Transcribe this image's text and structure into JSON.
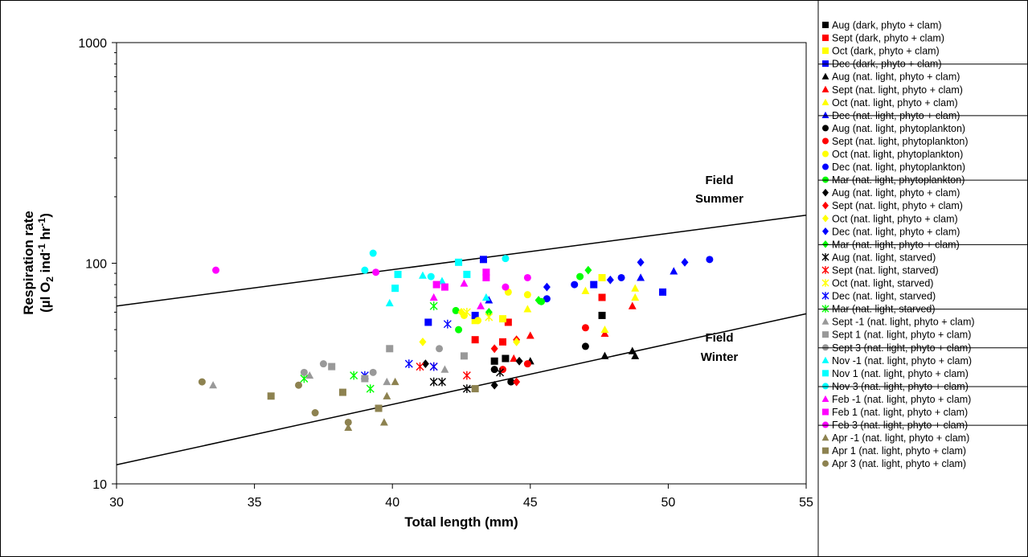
{
  "chart_data": {
    "type": "scatter",
    "title": "",
    "xlabel": "Total length (mm)",
    "ylabel_line1": "Respiration rate",
    "ylabel_line2_prefix": "(µl O",
    "ylabel_line2_sub": "2",
    "ylabel_line2_mid": " ind",
    "ylabel_line2_sup1": "-1",
    "ylabel_line2_mid2": " hr",
    "ylabel_line2_sup2": "-1",
    "ylabel_line2_suffix": ")",
    "xlim": [
      30,
      55
    ],
    "ylim": [
      10,
      1000
    ],
    "yscale": "log",
    "xticks": [
      30,
      35,
      40,
      45,
      50,
      55
    ],
    "yticks": [
      10,
      100,
      1000
    ],
    "grid": false,
    "legend_position": "right",
    "reference_lines": [
      {
        "name": "Field Summer",
        "label_line1": "Field",
        "label_line2": "Summer",
        "points": [
          [
            30,
            64
          ],
          [
            55,
            165
          ]
        ]
      },
      {
        "name": "Field Winter",
        "label_line1": "Field",
        "label_line2": "Winter",
        "points": [
          [
            30,
            12.2
          ],
          [
            55,
            59
          ]
        ]
      }
    ],
    "colors": {
      "black": "#000000",
      "red": "#ff0000",
      "yellow": "#ffff00",
      "blue": "#0000ff",
      "green": "#00ff00",
      "gray": "#999999",
      "cyan": "#00ffff",
      "magenta": "#ff00ff",
      "olive": "#8d8250"
    },
    "legend_groups": [
      {
        "items": [
          {
            "name": "Aug (dark, phyto + clam)",
            "marker": "square",
            "color": "#000000"
          },
          {
            "name": "Sept (dark, phyto + clam)",
            "marker": "square",
            "color": "#ff0000"
          },
          {
            "name": "Oct (dark, phyto + clam)",
            "marker": "square",
            "color": "#ffff00"
          },
          {
            "name": "Dec (dark, phyto + clam)",
            "marker": "square",
            "color": "#0000ff"
          }
        ]
      },
      {
        "items": [
          {
            "name": "Aug (nat. light, phyto + clam)",
            "marker": "triangle",
            "color": "#000000"
          },
          {
            "name": "Sept (nat. light, phyto + clam)",
            "marker": "triangle",
            "color": "#ff0000"
          },
          {
            "name": "Oct (nat. light, phyto + clam)",
            "marker": "triangle",
            "color": "#ffff00"
          },
          {
            "name": "Dec (nat. light, phyto + clam)",
            "marker": "triangle",
            "color": "#0000ff"
          }
        ]
      },
      {
        "items": [
          {
            "name": "Aug (nat. light, phytoplankton)",
            "marker": "circle",
            "color": "#000000"
          },
          {
            "name": "Sept (nat. light, phytoplankton)",
            "marker": "circle",
            "color": "#ff0000"
          },
          {
            "name": "Oct (nat. light, phytoplankton)",
            "marker": "circle",
            "color": "#ffff00"
          },
          {
            "name": "Dec (nat. light, phytoplankton)",
            "marker": "circle",
            "color": "#0000ff"
          },
          {
            "name": "Mar (nat. light, phytoplankton)",
            "marker": "circle",
            "color": "#00ff00"
          }
        ]
      },
      {
        "items": [
          {
            "name": "Aug (nat. light, phyto + clam)",
            "marker": "diamond",
            "color": "#000000"
          },
          {
            "name": "Sept (nat. light, phyto + clam)",
            "marker": "diamond",
            "color": "#ff0000"
          },
          {
            "name": "Oct (nat. light, phyto + clam)",
            "marker": "diamond",
            "color": "#ffff00"
          },
          {
            "name": "Dec (nat. light, phyto + clam)",
            "marker": "diamond",
            "color": "#0000ff"
          },
          {
            "name": "Mar (nat. light, phyto + clam)",
            "marker": "diamond",
            "color": "#00ff00"
          }
        ]
      },
      {
        "items": [
          {
            "name": "Aug (nat. light, starved)",
            "marker": "star",
            "color": "#000000"
          },
          {
            "name": "Sept (nat. light, starved)",
            "marker": "star",
            "color": "#ff0000"
          },
          {
            "name": "Oct (nat. light, starved)",
            "marker": "star",
            "color": "#ffff00"
          },
          {
            "name": "Dec (nat. light, starved)",
            "marker": "star",
            "color": "#0000ff"
          },
          {
            "name": "Mar (nat. light, starved)",
            "marker": "star",
            "color": "#00ff00"
          }
        ]
      },
      {
        "items": [
          {
            "name": "Sept -1 (nat. light, phyto + clam)",
            "marker": "triangle",
            "color": "#999999"
          },
          {
            "name": "Sept 1 (nat. light, phyto + clam)",
            "marker": "square",
            "color": "#999999"
          },
          {
            "name": "Sept 3 (nat. light, phyto + clam)",
            "marker": "circle",
            "color": "#999999"
          }
        ]
      },
      {
        "items": [
          {
            "name": "Nov -1 (nat. light, phyto + clam)",
            "marker": "triangle",
            "color": "#00ffff"
          },
          {
            "name": "Nov 1 (nat. light, phyto + clam)",
            "marker": "square",
            "color": "#00ffff"
          },
          {
            "name": "Nov 3 (nat. light, phyto + clam)",
            "marker": "circle",
            "color": "#00ffff"
          }
        ]
      },
      {
        "items": [
          {
            "name": "Feb -1 (nat. light, phyto + clam)",
            "marker": "triangle",
            "color": "#ff00ff"
          },
          {
            "name": "Feb 1 (nat. light, phyto + clam)",
            "marker": "square",
            "color": "#ff00ff"
          },
          {
            "name": "Feb 3 (nat. light, phyto + clam)",
            "marker": "circle",
            "color": "#ff00ff"
          }
        ]
      },
      {
        "items": [
          {
            "name": "Apr -1 (nat. light, phyto + clam)",
            "marker": "triangle",
            "color": "#8d8250"
          },
          {
            "name": "Apr 1 (nat. light, phyto + clam)",
            "marker": "square",
            "color": "#8d8250"
          },
          {
            "name": "Apr 3 (nat. light, phyto + clam)",
            "marker": "circle",
            "color": "#8d8250"
          }
        ]
      }
    ],
    "points": [
      {
        "g": 0,
        "i": 0,
        "x": 43.7,
        "y": 36
      },
      {
        "g": 0,
        "i": 0,
        "x": 44.1,
        "y": 37
      },
      {
        "g": 0,
        "i": 0,
        "x": 47.6,
        "y": 58
      },
      {
        "g": 0,
        "i": 1,
        "x": 44.2,
        "y": 54
      },
      {
        "g": 0,
        "i": 1,
        "x": 44.0,
        "y": 44
      },
      {
        "g": 0,
        "i": 1,
        "x": 43.0,
        "y": 45
      },
      {
        "g": 0,
        "i": 1,
        "x": 47.6,
        "y": 70
      },
      {
        "g": 0,
        "i": 2,
        "x": 43.0,
        "y": 55
      },
      {
        "g": 0,
        "i": 2,
        "x": 44.0,
        "y": 56
      },
      {
        "g": 0,
        "i": 2,
        "x": 47.6,
        "y": 86
      },
      {
        "g": 0,
        "i": 3,
        "x": 41.3,
        "y": 54
      },
      {
        "g": 0,
        "i": 3,
        "x": 43.3,
        "y": 104
      },
      {
        "g": 0,
        "i": 3,
        "x": 47.3,
        "y": 80
      },
      {
        "g": 0,
        "i": 3,
        "x": 49.8,
        "y": 74
      },
      {
        "g": 0,
        "i": 3,
        "x": 43.0,
        "y": 58
      },
      {
        "g": 1,
        "i": 0,
        "x": 45.0,
        "y": 36
      },
      {
        "g": 1,
        "i": 0,
        "x": 47.7,
        "y": 38
      },
      {
        "g": 1,
        "i": 0,
        "x": 48.7,
        "y": 40
      },
      {
        "g": 1,
        "i": 0,
        "x": 48.8,
        "y": 38
      },
      {
        "g": 1,
        "i": 1,
        "x": 44.4,
        "y": 37
      },
      {
        "g": 1,
        "i": 1,
        "x": 45.0,
        "y": 47
      },
      {
        "g": 1,
        "i": 1,
        "x": 47.7,
        "y": 48
      },
      {
        "g": 1,
        "i": 1,
        "x": 48.7,
        "y": 64
      },
      {
        "g": 1,
        "i": 2,
        "x": 44.9,
        "y": 62
      },
      {
        "g": 1,
        "i": 2,
        "x": 47.7,
        "y": 50
      },
      {
        "g": 1,
        "i": 2,
        "x": 48.8,
        "y": 77
      },
      {
        "g": 1,
        "i": 2,
        "x": 48.8,
        "y": 70
      },
      {
        "g": 1,
        "i": 2,
        "x": 47.0,
        "y": 75
      },
      {
        "g": 1,
        "i": 3,
        "x": 49.0,
        "y": 86
      },
      {
        "g": 1,
        "i": 3,
        "x": 50.2,
        "y": 92
      },
      {
        "g": 1,
        "i": 3,
        "x": 43.5,
        "y": 68
      },
      {
        "g": 2,
        "i": 0,
        "x": 43.7,
        "y": 33
      },
      {
        "g": 2,
        "i": 0,
        "x": 44.3,
        "y": 29
      },
      {
        "g": 2,
        "i": 0,
        "x": 47.0,
        "y": 42
      },
      {
        "g": 2,
        "i": 1,
        "x": 44.0,
        "y": 33
      },
      {
        "g": 2,
        "i": 1,
        "x": 44.9,
        "y": 35
      },
      {
        "g": 2,
        "i": 1,
        "x": 47.0,
        "y": 51
      },
      {
        "g": 2,
        "i": 2,
        "x": 42.6,
        "y": 58
      },
      {
        "g": 2,
        "i": 2,
        "x": 44.2,
        "y": 74
      },
      {
        "g": 2,
        "i": 2,
        "x": 44.9,
        "y": 72
      },
      {
        "g": 2,
        "i": 2,
        "x": 43.1,
        "y": 55
      },
      {
        "g": 2,
        "i": 3,
        "x": 45.6,
        "y": 69
      },
      {
        "g": 2,
        "i": 3,
        "x": 46.6,
        "y": 80
      },
      {
        "g": 2,
        "i": 3,
        "x": 48.3,
        "y": 86
      },
      {
        "g": 2,
        "i": 3,
        "x": 51.5,
        "y": 104
      },
      {
        "g": 2,
        "i": 4,
        "x": 42.3,
        "y": 61
      },
      {
        "g": 2,
        "i": 4,
        "x": 42.4,
        "y": 50
      },
      {
        "g": 2,
        "i": 4,
        "x": 45.4,
        "y": 67
      },
      {
        "g": 2,
        "i": 4,
        "x": 46.8,
        "y": 87
      },
      {
        "g": 3,
        "i": 0,
        "x": 41.2,
        "y": 35
      },
      {
        "g": 3,
        "i": 0,
        "x": 43.7,
        "y": 28
      },
      {
        "g": 3,
        "i": 0,
        "x": 44.6,
        "y": 36
      },
      {
        "g": 3,
        "i": 1,
        "x": 43.7,
        "y": 41
      },
      {
        "g": 3,
        "i": 1,
        "x": 44.5,
        "y": 45
      },
      {
        "g": 3,
        "i": 1,
        "x": 44.5,
        "y": 29
      },
      {
        "g": 3,
        "i": 2,
        "x": 41.1,
        "y": 44
      },
      {
        "g": 3,
        "i": 2,
        "x": 42.5,
        "y": 60
      },
      {
        "g": 3,
        "i": 2,
        "x": 44.5,
        "y": 44
      },
      {
        "g": 3,
        "i": 3,
        "x": 45.6,
        "y": 78
      },
      {
        "g": 3,
        "i": 3,
        "x": 47.9,
        "y": 84
      },
      {
        "g": 3,
        "i": 3,
        "x": 49.0,
        "y": 101
      },
      {
        "g": 3,
        "i": 3,
        "x": 50.6,
        "y": 101
      },
      {
        "g": 3,
        "i": 4,
        "x": 47.1,
        "y": 93
      },
      {
        "g": 3,
        "i": 4,
        "x": 43.5,
        "y": 60
      },
      {
        "g": 3,
        "i": 4,
        "x": 45.3,
        "y": 68
      },
      {
        "g": 4,
        "i": 0,
        "x": 41.5,
        "y": 29
      },
      {
        "g": 4,
        "i": 0,
        "x": 41.8,
        "y": 29
      },
      {
        "g": 4,
        "i": 0,
        "x": 42.7,
        "y": 27
      },
      {
        "g": 4,
        "i": 0,
        "x": 43.9,
        "y": 32
      },
      {
        "g": 4,
        "i": 1,
        "x": 41.0,
        "y": 34
      },
      {
        "g": 4,
        "i": 1,
        "x": 41.5,
        "y": 34
      },
      {
        "g": 4,
        "i": 1,
        "x": 42.7,
        "y": 31
      },
      {
        "g": 4,
        "i": 2,
        "x": 42.7,
        "y": 60
      },
      {
        "g": 4,
        "i": 2,
        "x": 43.5,
        "y": 57
      },
      {
        "g": 4,
        "i": 3,
        "x": 39.0,
        "y": 31
      },
      {
        "g": 4,
        "i": 3,
        "x": 40.6,
        "y": 35
      },
      {
        "g": 4,
        "i": 3,
        "x": 41.5,
        "y": 34
      },
      {
        "g": 4,
        "i": 3,
        "x": 42.0,
        "y": 53
      },
      {
        "g": 4,
        "i": 4,
        "x": 36.8,
        "y": 30
      },
      {
        "g": 4,
        "i": 4,
        "x": 38.6,
        "y": 31
      },
      {
        "g": 4,
        "i": 4,
        "x": 39.2,
        "y": 27
      },
      {
        "g": 4,
        "i": 4,
        "x": 41.5,
        "y": 64
      },
      {
        "g": 5,
        "i": 0,
        "x": 33.5,
        "y": 28
      },
      {
        "g": 5,
        "i": 0,
        "x": 37.0,
        "y": 31
      },
      {
        "g": 5,
        "i": 0,
        "x": 39.8,
        "y": 29
      },
      {
        "g": 5,
        "i": 0,
        "x": 41.9,
        "y": 33
      },
      {
        "g": 5,
        "i": 1,
        "x": 37.8,
        "y": 34
      },
      {
        "g": 5,
        "i": 1,
        "x": 39.0,
        "y": 30
      },
      {
        "g": 5,
        "i": 1,
        "x": 39.9,
        "y": 41
      },
      {
        "g": 5,
        "i": 1,
        "x": 42.6,
        "y": 38
      },
      {
        "g": 5,
        "i": 2,
        "x": 36.8,
        "y": 32
      },
      {
        "g": 5,
        "i": 2,
        "x": 37.5,
        "y": 35
      },
      {
        "g": 5,
        "i": 2,
        "x": 39.3,
        "y": 32
      },
      {
        "g": 5,
        "i": 2,
        "x": 41.7,
        "y": 41
      },
      {
        "g": 6,
        "i": 0,
        "x": 39.9,
        "y": 66
      },
      {
        "g": 6,
        "i": 0,
        "x": 41.1,
        "y": 88
      },
      {
        "g": 6,
        "i": 0,
        "x": 41.8,
        "y": 83
      },
      {
        "g": 6,
        "i": 0,
        "x": 43.4,
        "y": 70
      },
      {
        "g": 6,
        "i": 1,
        "x": 40.1,
        "y": 77
      },
      {
        "g": 6,
        "i": 1,
        "x": 40.2,
        "y": 89
      },
      {
        "g": 6,
        "i": 1,
        "x": 42.4,
        "y": 101
      },
      {
        "g": 6,
        "i": 1,
        "x": 42.7,
        "y": 89
      },
      {
        "g": 6,
        "i": 2,
        "x": 39.0,
        "y": 93
      },
      {
        "g": 6,
        "i": 2,
        "x": 39.3,
        "y": 111
      },
      {
        "g": 6,
        "i": 2,
        "x": 41.4,
        "y": 87
      },
      {
        "g": 6,
        "i": 2,
        "x": 44.1,
        "y": 105
      },
      {
        "g": 7,
        "i": 0,
        "x": 41.5,
        "y": 70
      },
      {
        "g": 7,
        "i": 0,
        "x": 42.6,
        "y": 81
      },
      {
        "g": 7,
        "i": 0,
        "x": 43.2,
        "y": 64
      },
      {
        "g": 7,
        "i": 1,
        "x": 41.6,
        "y": 80
      },
      {
        "g": 7,
        "i": 1,
        "x": 41.9,
        "y": 78
      },
      {
        "g": 7,
        "i": 1,
        "x": 43.4,
        "y": 86
      },
      {
        "g": 7,
        "i": 1,
        "x": 43.4,
        "y": 91
      },
      {
        "g": 7,
        "i": 2,
        "x": 33.6,
        "y": 93
      },
      {
        "g": 7,
        "i": 2,
        "x": 39.4,
        "y": 91
      },
      {
        "g": 7,
        "i": 2,
        "x": 44.1,
        "y": 78
      },
      {
        "g": 7,
        "i": 2,
        "x": 44.9,
        "y": 86
      },
      {
        "g": 8,
        "i": 0,
        "x": 38.4,
        "y": 18
      },
      {
        "g": 8,
        "i": 0,
        "x": 39.7,
        "y": 19
      },
      {
        "g": 8,
        "i": 0,
        "x": 39.8,
        "y": 25
      },
      {
        "g": 8,
        "i": 0,
        "x": 40.1,
        "y": 29
      },
      {
        "g": 8,
        "i": 1,
        "x": 35.6,
        "y": 25
      },
      {
        "g": 8,
        "i": 1,
        "x": 38.2,
        "y": 26
      },
      {
        "g": 8,
        "i": 1,
        "x": 39.5,
        "y": 22
      },
      {
        "g": 8,
        "i": 1,
        "x": 43.0,
        "y": 27
      },
      {
        "g": 8,
        "i": 2,
        "x": 33.1,
        "y": 29
      },
      {
        "g": 8,
        "i": 2,
        "x": 36.6,
        "y": 28
      },
      {
        "g": 8,
        "i": 2,
        "x": 37.2,
        "y": 21
      },
      {
        "g": 8,
        "i": 2,
        "x": 38.4,
        "y": 19
      }
    ]
  }
}
